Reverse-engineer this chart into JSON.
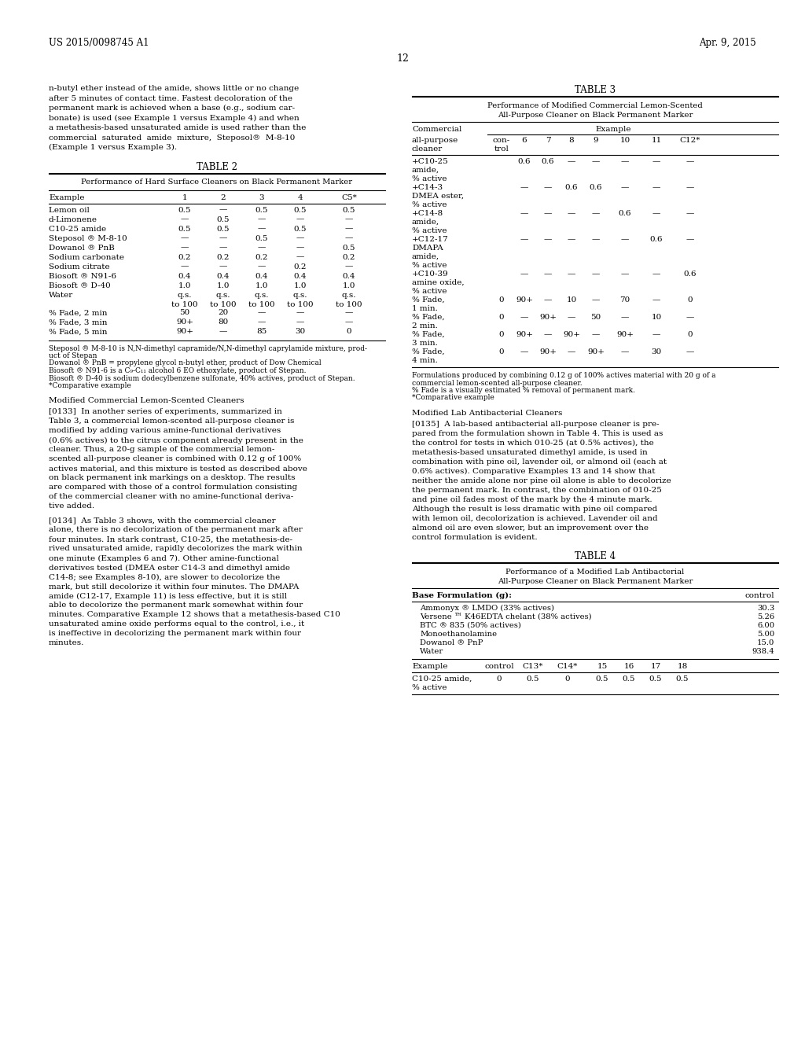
{
  "page_header_left": "US 2015/0098745 A1",
  "page_header_right": "Apr. 9, 2015",
  "page_number": "12",
  "background_color": "#ffffff",
  "left_column_text": [
    "n-butyl ether instead of the amide, shows little or no change",
    "after 5 minutes of contact time. Fastest decoloration of the",
    "permanent mark is achieved when a base (e.g., sodium car-",
    "bonate) is used (see Example 1 versus Example 4) and when",
    "a metathesis-based unsaturated amide is used rather than the",
    "commercial  saturated  amide  mixture,  Steposol®  M-8-10",
    "(Example 1 versus Example 3)."
  ],
  "table2_title": "TABLE 2",
  "table2_subtitle": "Performance of Hard Surface Cleaners on Black Permanent Marker",
  "table2_col_headers": [
    "Example",
    "1",
    "2",
    "3",
    "4",
    "C5*"
  ],
  "table2_rows": [
    [
      "Lemon oil",
      "0.5",
      "—",
      "0.5",
      "0.5",
      "0.5"
    ],
    [
      "d-Limonene",
      "—",
      "0.5",
      "—",
      "—",
      "—"
    ],
    [
      "C10-25 amide",
      "0.5",
      "0.5",
      "—",
      "0.5",
      "—"
    ],
    [
      "Steposol ® M-8-10",
      "—",
      "—",
      "0.5",
      "—",
      "—"
    ],
    [
      "Dowanol ® PnB",
      "—",
      "—",
      "—",
      "—",
      "0.5"
    ],
    [
      "Sodium carbonate",
      "0.2",
      "0.2",
      "0.2",
      "—",
      "0.2"
    ],
    [
      "Sodium citrate",
      "—",
      "—",
      "—",
      "0.2",
      "—"
    ],
    [
      "Biosoft ® N91-6",
      "0.4",
      "0.4",
      "0.4",
      "0.4",
      "0.4"
    ],
    [
      "Biosoft ® D-40",
      "1.0",
      "1.0",
      "1.0",
      "1.0",
      "1.0"
    ],
    [
      "Water",
      "q.s.",
      "q.s.",
      "q.s.",
      "q.s.",
      "q.s."
    ],
    [
      "",
      "to 100",
      "to 100",
      "to 100",
      "to 100",
      "to 100"
    ],
    [
      "% Fade, 2 min",
      "50",
      "20",
      "—",
      "—",
      "—"
    ],
    [
      "% Fade, 3 min",
      "90+",
      "80",
      "—",
      "—",
      "—"
    ],
    [
      "% Fade, 5 min",
      "90+",
      "—",
      "85",
      "30",
      "0"
    ]
  ],
  "table2_footnotes": [
    "Steposol ® M-8-10 is N,N-dimethyl capramide/N,N-dimethyl caprylamide mixture, prod-",
    "uct of Stepan",
    "Dowanol ® PnB = propylene glycol n-butyl ether, product of Dow Chemical",
    "Biosoft ® N91-6 is a C₉-C₁₁ alcohol 6 EO ethoxylate, product of Stepan.",
    "Biosoft ® D-40 is sodium dodecylbenzene sulfonate, 40% actives, product of Stepan.",
    "*Comparative example"
  ],
  "left_col2_heading": "Modified Commercial Lemon-Scented Cleaners",
  "left_col2_para1": [
    "[0133]  In another series of experiments, summarized in",
    "Table 3, a commercial lemon-scented all-purpose cleaner is",
    "modified by adding various amine-functional derivatives",
    "(0.6% actives) to the citrus component already present in the",
    "cleaner. Thus, a 20-g sample of the commercial lemon-",
    "scented all-purpose cleaner is combined with 0.12 g of 100%",
    "actives material, and this mixture is tested as described above",
    "on black permanent ink markings on a desktop. The results",
    "are compared with those of a control formulation consisting",
    "of the commercial cleaner with no amine-functional deriva-",
    "tive added."
  ],
  "left_col2_para2": [
    "[0134]  As Table 3 shows, with the commercial cleaner",
    "alone, there is no decolorization of the permanent mark after",
    "four minutes. In stark contrast, C10-25, the metathesis-de-",
    "rived unsaturated amide, rapidly decolorizes the mark within",
    "one minute (Examples 6 and 7). Other amine-functional",
    "derivatives tested (DMEA ester C14-3 and dimethyl amide",
    "C14-8; see Examples 8-10), are slower to decolorize the",
    "mark, but still decolorize it within four minutes. The DMAPA",
    "amide (C12-17, Example 11) is less effective, but it is still",
    "able to decolorize the permanent mark somewhat within four",
    "minutes. Comparative Example 12 shows that a metathesis-based C10",
    "unsaturated amine oxide performs equal to the control, i.e., it",
    "is ineffective in decolorizing the permanent mark within four",
    "minutes."
  ],
  "table3_title": "TABLE 3",
  "table3_subtitle1": "Performance of Modified Commercial Lemon-Scented",
  "table3_subtitle2": "All-Purpose Cleaner on Black Permanent Marker",
  "table3_rows": [
    [
      "+C10-25",
      "",
      "0.6",
      "0.6",
      "—",
      "—",
      "—",
      "—",
      "—"
    ],
    [
      "amide,",
      "",
      "",
      "",
      "",
      "",
      "",
      "",
      ""
    ],
    [
      "% active",
      "",
      "",
      "",
      "",
      "",
      "",
      "",
      ""
    ],
    [
      "+C14-3",
      "",
      "—",
      "—",
      "0.6",
      "0.6",
      "—",
      "—",
      "—"
    ],
    [
      "DMEA ester,",
      "",
      "",
      "",
      "",
      "",
      "",
      "",
      ""
    ],
    [
      "% active",
      "",
      "",
      "",
      "",
      "",
      "",
      "",
      ""
    ],
    [
      "+C14-8",
      "",
      "—",
      "—",
      "—",
      "—",
      "0.6",
      "—",
      "—"
    ],
    [
      "amide,",
      "",
      "",
      "",
      "",
      "",
      "",
      "",
      ""
    ],
    [
      "% active",
      "",
      "",
      "",
      "",
      "",
      "",
      "",
      ""
    ],
    [
      "+C12-17",
      "",
      "—",
      "—",
      "—",
      "—",
      "—",
      "0.6",
      "—"
    ],
    [
      "DMAPA",
      "",
      "",
      "",
      "",
      "",
      "",
      "",
      ""
    ],
    [
      "amide,",
      "",
      "",
      "",
      "",
      "",
      "",
      "",
      ""
    ],
    [
      "% active",
      "",
      "",
      "",
      "",
      "",
      "",
      "",
      ""
    ],
    [
      "+C10-39",
      "",
      "—",
      "—",
      "—",
      "—",
      "—",
      "—",
      "0.6"
    ],
    [
      "amine oxide,",
      "",
      "",
      "",
      "",
      "",
      "",
      "",
      ""
    ],
    [
      "% active",
      "",
      "",
      "",
      "",
      "",
      "",
      "",
      ""
    ],
    [
      "% Fade,",
      "0",
      "90+",
      "—",
      "10",
      "—",
      "70",
      "—",
      "0"
    ],
    [
      "1 min.",
      "",
      "",
      "",
      "",
      "",
      "",
      "",
      ""
    ],
    [
      "% Fade,",
      "0",
      "—",
      "90+",
      "—",
      "50",
      "—",
      "10",
      "—"
    ],
    [
      "2 min.",
      "",
      "",
      "",
      "",
      "",
      "",
      "",
      ""
    ],
    [
      "% Fade,",
      "0",
      "90+",
      "—",
      "90+",
      "—",
      "90+",
      "—",
      "0"
    ],
    [
      "3 min.",
      "",
      "",
      "",
      "",
      "",
      "",
      "",
      ""
    ],
    [
      "% Fade,",
      "0",
      "—",
      "90+",
      "—",
      "90+",
      "—",
      "30",
      "—"
    ],
    [
      "4 min.",
      "",
      "",
      "",
      "",
      "",
      "",
      "",
      ""
    ]
  ],
  "table3_footnotes": [
    "Formulations produced by combining 0.12 g of 100% actives material with 20 g of a",
    "commercial lemon-scented all-purpose cleaner.",
    "% Fade is a visually estimated % removal of permanent mark.",
    "*Comparative example"
  ],
  "right_col2_heading": "Modified Lab Antibacterial Cleaners",
  "right_col2_para": [
    "[0135]  A lab-based antibacterial all-purpose cleaner is pre-",
    "pared from the formulation shown in Table 4. This is used as",
    "the control for tests in which 010-25 (at 0.5% actives), the",
    "metathesis-based unsaturated dimethyl amide, is used in",
    "combination with pine oil, lavender oil, or almond oil (each at",
    "0.6% actives). Comparative Examples 13 and 14 show that",
    "neither the amide alone nor pine oil alone is able to decolorize",
    "the permanent mark. In contrast, the combination of 010-25",
    "and pine oil fades most of the mark by the 4 minute mark.",
    "Although the result is less dramatic with pine oil compared",
    "with lemon oil, decolorization is achieved. Lavender oil and",
    "almond oil are even slower, but an improvement over the",
    "control formulation is evident."
  ],
  "table4_title": "TABLE 4",
  "table4_subtitle1": "Performance of a Modified Lab Antibacterial",
  "table4_subtitle2": "All-Purpose Cleaner on Black Permanent Marker",
  "table4_base_label": "Base Formulation (g):",
  "table4_control_label": "control",
  "table4_base_rows": [
    [
      "Ammonyx ® LMDO (33% actives)",
      "30.3"
    ],
    [
      "Versene ™ K46EDTA chelant (38% actives)",
      "5.26"
    ],
    [
      "BTC ® 835 (50% actives)",
      "6.00"
    ],
    [
      "Monoethanolamine",
      "5.00"
    ],
    [
      "Dowanol ® PnP",
      "15.0"
    ],
    [
      "Water",
      "938.4"
    ]
  ],
  "table4_col_headers": [
    "Example",
    "control",
    "C13*",
    "C14*",
    "15",
    "16",
    "17",
    "18"
  ],
  "table4_data_rows": [
    [
      "C10-25 amide,",
      "0",
      "0.5",
      "0",
      "0.5",
      "0.5",
      "0.5",
      "0.5"
    ],
    [
      "% active",
      "",
      "",
      "",
      "",
      "",
      "",
      ""
    ]
  ]
}
